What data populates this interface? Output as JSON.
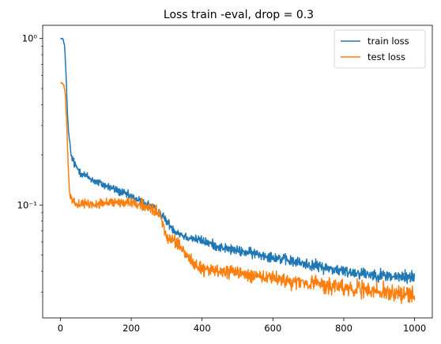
{
  "chart_data": {
    "type": "line",
    "title": "Loss train -eval, drop = 0.3",
    "xlabel": "",
    "ylabel": "",
    "xlim": [
      -50,
      1050
    ],
    "ylim": [
      0.021,
      1.2
    ],
    "yscale": "log",
    "grid": false,
    "legend_position": "top-right",
    "x_ticks": [
      0,
      200,
      400,
      600,
      800,
      1000
    ],
    "x_tick_labels": [
      "0",
      "200",
      "400",
      "600",
      "800",
      "1000"
    ],
    "y_ticks": [
      1,
      0.1
    ],
    "y_tick_labels": [
      "10⁰",
      "10⁻¹"
    ],
    "series": [
      {
        "name": "train loss",
        "color": "#1f77b4",
        "keypoints": [
          [
            0,
            1.0
          ],
          [
            8,
            0.99
          ],
          [
            12,
            0.9
          ],
          [
            16,
            0.6
          ],
          [
            20,
            0.35
          ],
          [
            24,
            0.26
          ],
          [
            30,
            0.2
          ],
          [
            40,
            0.175
          ],
          [
            60,
            0.155
          ],
          [
            100,
            0.138
          ],
          [
            150,
            0.125
          ],
          [
            200,
            0.112
          ],
          [
            250,
            0.1
          ],
          [
            280,
            0.09
          ],
          [
            300,
            0.08
          ],
          [
            320,
            0.071
          ],
          [
            350,
            0.065
          ],
          [
            400,
            0.061
          ],
          [
            450,
            0.056
          ],
          [
            500,
            0.053
          ],
          [
            550,
            0.051
          ],
          [
            600,
            0.049
          ],
          [
            650,
            0.046
          ],
          [
            700,
            0.044
          ],
          [
            750,
            0.042
          ],
          [
            800,
            0.04
          ],
          [
            850,
            0.039
          ],
          [
            900,
            0.038
          ],
          [
            950,
            0.037
          ],
          [
            1000,
            0.037
          ]
        ],
        "noise": [
          [
            0,
            0.0
          ],
          [
            30,
            0.06
          ],
          [
            300,
            0.06
          ],
          [
            1000,
            0.09
          ]
        ]
      },
      {
        "name": "test loss",
        "color": "#ff7f0e",
        "keypoints": [
          [
            0,
            0.54
          ],
          [
            5,
            0.54
          ],
          [
            10,
            0.52
          ],
          [
            14,
            0.45
          ],
          [
            18,
            0.3
          ],
          [
            22,
            0.17
          ],
          [
            26,
            0.12
          ],
          [
            32,
            0.107
          ],
          [
            50,
            0.101
          ],
          [
            100,
            0.101
          ],
          [
            150,
            0.104
          ],
          [
            200,
            0.104
          ],
          [
            250,
            0.097
          ],
          [
            280,
            0.087
          ],
          [
            300,
            0.065
          ],
          [
            320,
            0.061
          ],
          [
            350,
            0.052
          ],
          [
            380,
            0.044
          ],
          [
            400,
            0.041
          ],
          [
            450,
            0.04
          ],
          [
            500,
            0.039
          ],
          [
            600,
            0.036
          ],
          [
            700,
            0.034
          ],
          [
            800,
            0.032
          ],
          [
            900,
            0.03
          ],
          [
            1000,
            0.029
          ]
        ],
        "noise": [
          [
            0,
            0.0
          ],
          [
            30,
            0.05
          ],
          [
            300,
            0.08
          ],
          [
            1000,
            0.12
          ]
        ]
      }
    ]
  }
}
